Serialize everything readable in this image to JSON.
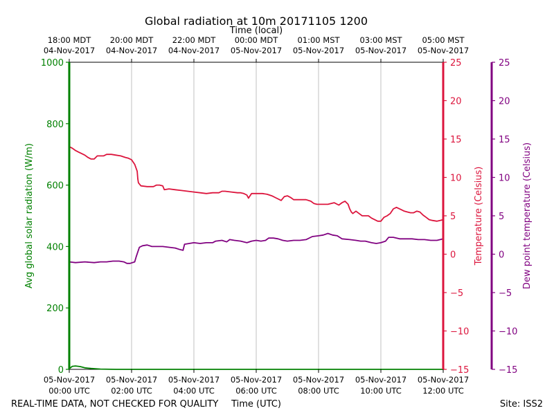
{
  "chart_data": {
    "type": "line",
    "title": "Global radiation at 10m 20171105 1200",
    "top_axis_label": "Time (local)",
    "xlabel": "Time (UTC)",
    "footer_left": "REAL-TIME DATA, NOT CHECKED FOR QUALITY",
    "footer_right": "Site: ISS2",
    "x_range_hours": [
      0,
      12
    ],
    "bottom_ticks": [
      {
        "h": 0,
        "line1": "05-Nov-2017",
        "line2": "00:00 UTC"
      },
      {
        "h": 2,
        "line1": "05-Nov-2017",
        "line2": "02:00 UTC"
      },
      {
        "h": 4,
        "line1": "05-Nov-2017",
        "line2": "04:00 UTC"
      },
      {
        "h": 6,
        "line1": "05-Nov-2017",
        "line2": "06:00 UTC"
      },
      {
        "h": 8,
        "line1": "05-Nov-2017",
        "line2": "08:00 UTC"
      },
      {
        "h": 10,
        "line1": "05-Nov-2017",
        "line2": "10:00 UTC"
      },
      {
        "h": 12,
        "line1": "05-Nov-2017",
        "line2": "12:00 UTC"
      }
    ],
    "top_ticks": [
      {
        "h": 0,
        "line1": "18:00 MDT",
        "line2": "04-Nov-2017"
      },
      {
        "h": 2,
        "line1": "20:00 MDT",
        "line2": "04-Nov-2017"
      },
      {
        "h": 4,
        "line1": "22:00 MDT",
        "line2": "04-Nov-2017"
      },
      {
        "h": 6,
        "line1": "00:00 MDT",
        "line2": "05-Nov-2017"
      },
      {
        "h": 8,
        "line1": "01:00 MST",
        "line2": "05-Nov-2017"
      },
      {
        "h": 10,
        "line1": "03:00 MST",
        "line2": "05-Nov-2017"
      },
      {
        "h": 12,
        "line1": "05:00 MST",
        "line2": "05-Nov-2017"
      }
    ],
    "left_axis": {
      "label": "Avg global solar radiation (W/m)",
      "ylim": [
        0,
        1000
      ],
      "ticks": [
        0,
        200,
        400,
        600,
        800,
        1000
      ],
      "color": "#008000"
    },
    "right_axis_1": {
      "label": "Temperature (Celsius)",
      "ylim": [
        -15,
        25
      ],
      "ticks": [
        -15,
        -10,
        -5,
        0,
        5,
        10,
        15,
        20,
        25
      ],
      "color": "#dc143c"
    },
    "right_axis_2": {
      "label": "Dew point temperature (Celsius)",
      "ylim": [
        -15,
        25
      ],
      "ticks": [
        -15,
        -10,
        -5,
        0,
        5,
        10,
        15,
        20,
        25
      ],
      "color": "#800080"
    },
    "series": [
      {
        "name": "Avg global solar radiation",
        "axis": "left",
        "color": "#008000",
        "points": [
          [
            0,
            2
          ],
          [
            0.1,
            10
          ],
          [
            0.2,
            11
          ],
          [
            0.35,
            9
          ],
          [
            0.5,
            5
          ],
          [
            0.7,
            3
          ],
          [
            1.0,
            1
          ],
          [
            1.5,
            0
          ],
          [
            12,
            0
          ]
        ]
      },
      {
        "name": "Temperature",
        "axis": "right_1",
        "color": "#dc143c",
        "points": [
          [
            0,
            14.0
          ],
          [
            0.1,
            13.8
          ],
          [
            0.2,
            13.5
          ],
          [
            0.3,
            13.3
          ],
          [
            0.4,
            13.1
          ],
          [
            0.5,
            12.9
          ],
          [
            0.6,
            12.6
          ],
          [
            0.7,
            12.4
          ],
          [
            0.8,
            12.4
          ],
          [
            0.9,
            12.8
          ],
          [
            1.0,
            12.8
          ],
          [
            1.1,
            12.8
          ],
          [
            1.2,
            13.0
          ],
          [
            1.35,
            13.0
          ],
          [
            1.5,
            12.9
          ],
          [
            1.65,
            12.8
          ],
          [
            1.8,
            12.6
          ],
          [
            1.9,
            12.5
          ],
          [
            2.0,
            12.3
          ],
          [
            2.1,
            11.7
          ],
          [
            2.18,
            10.8
          ],
          [
            2.2,
            9.8
          ],
          [
            2.22,
            9.3
          ],
          [
            2.3,
            8.9
          ],
          [
            2.5,
            8.8
          ],
          [
            2.7,
            8.8
          ],
          [
            2.8,
            9.0
          ],
          [
            2.9,
            9.0
          ],
          [
            3.0,
            8.9
          ],
          [
            3.05,
            8.4
          ],
          [
            3.2,
            8.5
          ],
          [
            3.4,
            8.4
          ],
          [
            3.6,
            8.3
          ],
          [
            3.8,
            8.2
          ],
          [
            4.0,
            8.1
          ],
          [
            4.2,
            8.0
          ],
          [
            4.4,
            7.9
          ],
          [
            4.6,
            8.0
          ],
          [
            4.8,
            8.0
          ],
          [
            4.9,
            8.2
          ],
          [
            5.0,
            8.2
          ],
          [
            5.2,
            8.1
          ],
          [
            5.4,
            8.0
          ],
          [
            5.5,
            8.0
          ],
          [
            5.6,
            7.9
          ],
          [
            5.7,
            7.7
          ],
          [
            5.75,
            7.3
          ],
          [
            5.8,
            7.6
          ],
          [
            5.85,
            7.9
          ],
          [
            6.0,
            7.9
          ],
          [
            6.2,
            7.9
          ],
          [
            6.35,
            7.8
          ],
          [
            6.5,
            7.6
          ],
          [
            6.65,
            7.3
          ],
          [
            6.8,
            7.0
          ],
          [
            6.9,
            7.5
          ],
          [
            7.0,
            7.6
          ],
          [
            7.1,
            7.4
          ],
          [
            7.2,
            7.1
          ],
          [
            7.3,
            7.1
          ],
          [
            7.4,
            7.1
          ],
          [
            7.5,
            7.1
          ],
          [
            7.6,
            7.1
          ],
          [
            7.75,
            6.9
          ],
          [
            7.85,
            6.6
          ],
          [
            7.95,
            6.5
          ],
          [
            8.1,
            6.5
          ],
          [
            8.3,
            6.5
          ],
          [
            8.4,
            6.6
          ],
          [
            8.5,
            6.7
          ],
          [
            8.65,
            6.4
          ],
          [
            8.75,
            6.7
          ],
          [
            8.85,
            6.9
          ],
          [
            8.95,
            6.5
          ],
          [
            9.0,
            5.9
          ],
          [
            9.05,
            5.5
          ],
          [
            9.1,
            5.3
          ],
          [
            9.2,
            5.6
          ],
          [
            9.3,
            5.3
          ],
          [
            9.4,
            5.0
          ],
          [
            9.5,
            5.0
          ],
          [
            9.6,
            5.0
          ],
          [
            9.7,
            4.7
          ],
          [
            9.8,
            4.5
          ],
          [
            9.9,
            4.3
          ],
          [
            10.0,
            4.3
          ],
          [
            10.1,
            4.8
          ],
          [
            10.2,
            5.0
          ],
          [
            10.3,
            5.3
          ],
          [
            10.4,
            5.9
          ],
          [
            10.5,
            6.1
          ],
          [
            10.55,
            6.0
          ],
          [
            10.65,
            5.8
          ],
          [
            10.75,
            5.6
          ],
          [
            10.85,
            5.5
          ],
          [
            10.95,
            5.4
          ],
          [
            11.05,
            5.4
          ],
          [
            11.15,
            5.6
          ],
          [
            11.25,
            5.5
          ],
          [
            11.35,
            5.1
          ],
          [
            11.45,
            4.8
          ],
          [
            11.55,
            4.5
          ],
          [
            11.65,
            4.4
          ],
          [
            11.8,
            4.3
          ],
          [
            11.9,
            4.4
          ],
          [
            12.0,
            4.5
          ]
        ]
      },
      {
        "name": "Dew point temperature",
        "axis": "right_2",
        "color": "#800080",
        "points": [
          [
            0,
            -1.0
          ],
          [
            0.2,
            -1.1
          ],
          [
            0.5,
            -1.0
          ],
          [
            0.8,
            -1.1
          ],
          [
            1.0,
            -1.0
          ],
          [
            1.2,
            -1.0
          ],
          [
            1.4,
            -0.9
          ],
          [
            1.6,
            -0.9
          ],
          [
            1.75,
            -1.0
          ],
          [
            1.85,
            -1.2
          ],
          [
            1.95,
            -1.2
          ],
          [
            2.1,
            -1.0
          ],
          [
            2.15,
            -0.3
          ],
          [
            2.2,
            0.3
          ],
          [
            2.25,
            0.9
          ],
          [
            2.35,
            1.1
          ],
          [
            2.5,
            1.2
          ],
          [
            2.65,
            1.0
          ],
          [
            2.8,
            1.0
          ],
          [
            3.0,
            1.0
          ],
          [
            3.2,
            0.9
          ],
          [
            3.4,
            0.8
          ],
          [
            3.55,
            0.6
          ],
          [
            3.65,
            0.5
          ],
          [
            3.7,
            1.3
          ],
          [
            3.85,
            1.4
          ],
          [
            4.0,
            1.5
          ],
          [
            4.2,
            1.4
          ],
          [
            4.4,
            1.5
          ],
          [
            4.6,
            1.5
          ],
          [
            4.7,
            1.7
          ],
          [
            4.9,
            1.8
          ],
          [
            5.05,
            1.6
          ],
          [
            5.15,
            1.9
          ],
          [
            5.3,
            1.8
          ],
          [
            5.5,
            1.7
          ],
          [
            5.7,
            1.5
          ],
          [
            5.85,
            1.7
          ],
          [
            6.0,
            1.8
          ],
          [
            6.15,
            1.7
          ],
          [
            6.3,
            1.8
          ],
          [
            6.4,
            2.1
          ],
          [
            6.55,
            2.1
          ],
          [
            6.7,
            2.0
          ],
          [
            6.85,
            1.8
          ],
          [
            7.0,
            1.7
          ],
          [
            7.2,
            1.8
          ],
          [
            7.4,
            1.8
          ],
          [
            7.6,
            1.9
          ],
          [
            7.8,
            2.3
          ],
          [
            8.0,
            2.4
          ],
          [
            8.15,
            2.5
          ],
          [
            8.3,
            2.7
          ],
          [
            8.45,
            2.5
          ],
          [
            8.6,
            2.4
          ],
          [
            8.75,
            2.0
          ],
          [
            9.0,
            1.9
          ],
          [
            9.2,
            1.8
          ],
          [
            9.35,
            1.7
          ],
          [
            9.5,
            1.7
          ],
          [
            9.7,
            1.5
          ],
          [
            9.85,
            1.4
          ],
          [
            10.0,
            1.5
          ],
          [
            10.15,
            1.7
          ],
          [
            10.25,
            2.2
          ],
          [
            10.4,
            2.2
          ],
          [
            10.6,
            2.0
          ],
          [
            10.8,
            2.0
          ],
          [
            11.0,
            2.0
          ],
          [
            11.2,
            1.9
          ],
          [
            11.4,
            1.9
          ],
          [
            11.6,
            1.8
          ],
          [
            11.8,
            1.8
          ],
          [
            12.0,
            2.0
          ]
        ]
      }
    ]
  }
}
